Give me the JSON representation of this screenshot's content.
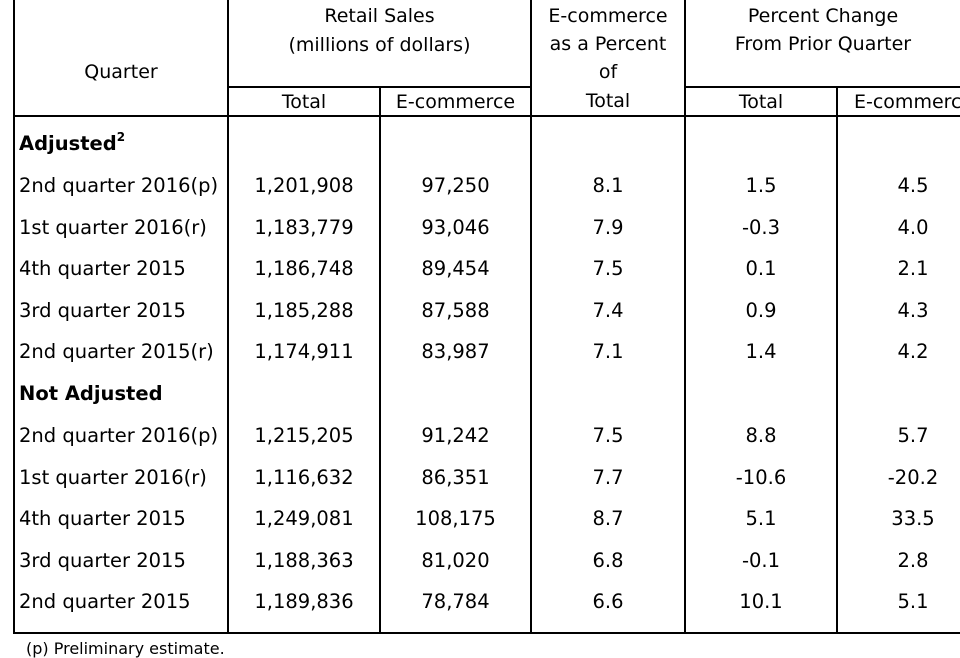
{
  "headers": {
    "quarter": "Quarter",
    "retail_sales_line1": "Retail Sales",
    "retail_sales_line2": "(millions of dollars)",
    "ecom_pct_line1": "E-commerce",
    "ecom_pct_line2": "as a Percent",
    "ecom_pct_line3": "of",
    "ecom_pct_line4": "Total",
    "pct_change_line1": "Percent Change",
    "pct_change_line2": "From Prior Quarter",
    "total": "Total",
    "ecommerce": "E-commerce",
    "total2": "Total",
    "ecommerce2": "E-commerce"
  },
  "sections": [
    {
      "title": "Adjusted",
      "sup": "2",
      "rows": [
        {
          "quarter": "2nd quarter 2016(p)",
          "total": "1,201,908",
          "ecom": "97,250",
          "pct": "8.1",
          "chg_total": "1.5",
          "chg_ecom": "4.5"
        },
        {
          "quarter": "1st quarter 2016(r)",
          "total": "1,183,779",
          "ecom": "93,046",
          "pct": "7.9",
          "chg_total": "-0.3",
          "chg_ecom": "4.0"
        },
        {
          "quarter": "4th quarter 2015",
          "total": "1,186,748",
          "ecom": "89,454",
          "pct": "7.5",
          "chg_total": "0.1",
          "chg_ecom": "2.1"
        },
        {
          "quarter": "3rd quarter 2015",
          "total": "1,185,288",
          "ecom": "87,588",
          "pct": "7.4",
          "chg_total": "0.9",
          "chg_ecom": "4.3"
        },
        {
          "quarter": "2nd quarter 2015(r)",
          "total": "1,174,911",
          "ecom": "83,987",
          "pct": "7.1",
          "chg_total": "1.4",
          "chg_ecom": "4.2"
        }
      ]
    },
    {
      "title": "Not Adjusted",
      "sup": "",
      "rows": [
        {
          "quarter": "2nd quarter 2016(p)",
          "total": "1,215,205",
          "ecom": "91,242",
          "pct": "7.5",
          "chg_total": "8.8",
          "chg_ecom": "5.7"
        },
        {
          "quarter": "1st quarter 2016(r)",
          "total": "1,116,632",
          "ecom": "86,351",
          "pct": "7.7",
          "chg_total": "-10.6",
          "chg_ecom": "-20.2"
        },
        {
          "quarter": "4th quarter 2015",
          "total": "1,249,081",
          "ecom": "108,175",
          "pct": "8.7",
          "chg_total": "5.1",
          "chg_ecom": "33.5"
        },
        {
          "quarter": "3rd quarter 2015",
          "total": "1,188,363",
          "ecom": "81,020",
          "pct": "6.8",
          "chg_total": "-0.1",
          "chg_ecom": "2.8"
        },
        {
          "quarter": "2nd quarter 2015",
          "total": "1,189,836",
          "ecom": "78,784",
          "pct": "6.6",
          "chg_total": "10.1",
          "chg_ecom": "5.1"
        }
      ]
    }
  ],
  "footnote": "(p) Preliminary estimate."
}
